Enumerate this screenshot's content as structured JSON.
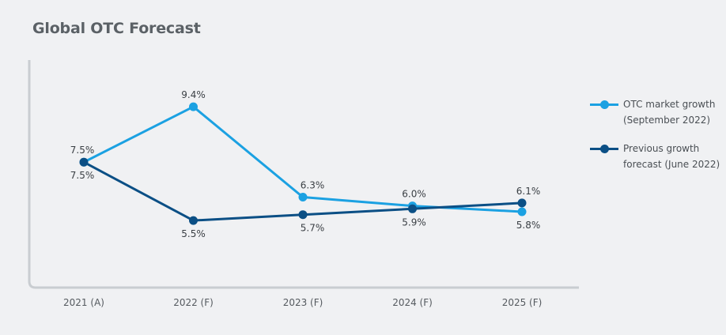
{
  "chart_data": {
    "type": "line",
    "title": "Global OTC Forecast",
    "categories": [
      "2021 (A)",
      "2022 (F)",
      "2023 (F)",
      "2024 (F)",
      "2025 (F)"
    ],
    "series": [
      {
        "name": "OTC market growth (September 2022)",
        "values": [
          7.5,
          9.4,
          6.3,
          6.0,
          5.8
        ],
        "labels": [
          "7.5%",
          "9.4%",
          "6.3%",
          "6.0%",
          "5.8%"
        ],
        "color": "#1ba1e2"
      },
      {
        "name": "Previous growth forecast (June 2022)",
        "values": [
          7.5,
          5.5,
          5.7,
          5.9,
          6.1
        ],
        "labels": [
          "7.5%",
          "5.5%",
          "5.7%",
          "5.9%",
          "6.1%"
        ],
        "color": "#0b4f85"
      }
    ],
    "legend": [
      {
        "line1": "OTC market growth",
        "line2": "(September 2022)"
      },
      {
        "line1": "Previous growth",
        "line2": "forecast (June 2022)"
      }
    ],
    "ylim": [
      3.2,
      11.0
    ],
    "grid": false,
    "legend_position": "right",
    "xlabel": "",
    "ylabel": ""
  }
}
